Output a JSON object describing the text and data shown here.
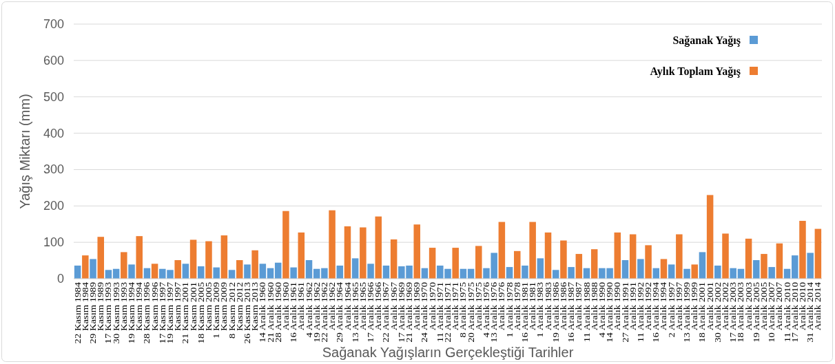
{
  "chart_data": {
    "type": "bar",
    "xlabel": "Sağanak Yağışların Gerçekleştiği Tarihler",
    "ylabel": "Yağış Miktarı (mm)",
    "categories": [
      "22 Kasım 1984",
      "Kasım 1984",
      "29 Kasım 1989",
      "Kasım 1989",
      "17 Kasım 1993",
      "30 Kasım 1993",
      "Kasım 1993",
      "19 Kasım 1994",
      "Kasım 1994",
      "28 Kasım 1996",
      "Kasım 1996",
      "17 Kasım 1997",
      "19 Kasım 1997",
      "Kasım 1997",
      "21 Kasım 2001",
      "Kasım 2001",
      "18 Kasım 2005",
      "Kasım 2005",
      "1 Kasım 2009",
      "Kasım 2009",
      "8 Kasım 2012",
      "Kasım 2012",
      "26 Kasım 2013",
      "Kasım 2013",
      "14 Aralık 1960",
      "21 Aralık 1960",
      "28 Aralık 1960",
      "Aralık 1960",
      "16 Aralık 1961",
      "Aralık 1961",
      "4 Aralık 1962",
      "19 Aralık 1962",
      "22 Aralık 1962",
      "Aralık 1962",
      "29 Aralık 1964",
      "Aralık 1964",
      "13 Aralık 1965",
      "Aralık 1965",
      "17 Aralık 1966",
      "Aralık 1966",
      "22 Aralık 1967",
      "Aralık 1967",
      "17 Aralık 1969",
      "21 Aralık 1969",
      "Aralık 1969",
      "24 Aralık 1970",
      "Aralık 1970",
      "11 Aralık 1971",
      "22 Aralık 1971",
      "Aralık 1971",
      "8 Aralık 1975",
      "20 Aralık 1975",
      "Aralık 1975",
      "4 Aralık 1976",
      "13 Aralık 1976",
      "Aralık 1976",
      "1 Aralık 1978",
      "Aralık 1978",
      "16 Aralık 1981",
      "Aralık 1981",
      "1 Aralık 1983",
      "Aralık 1983",
      "19 Aralık 1986",
      "Aralık 1986",
      "16 Aralık 1987",
      "Aralık 1987",
      "11 Aralık 1988",
      "Aralık 1988",
      "4 Aralık 1990",
      "14 Aralık 1990",
      "Aralık 1990",
      "27 Aralık 1991",
      "Aralık 1991",
      "11 Aralık 1992",
      "Aralık 1992",
      "16 Aralık 1994",
      "Aralık 1994",
      "2 Aralık 1997",
      "Aralık 1997",
      "13 Aralık 1999",
      "Aralık 1999",
      "18 Aralık 2001",
      "Aralık 2001",
      "30 Aralık 2002",
      "Aralık 2002",
      "17 Aralık 2003",
      "18 Aralık 2003",
      "Aralık 2003",
      "19 Aralık 2005",
      "Aralık 2005",
      "10 Aralık 2007",
      "Aralık 2007",
      "11 Aralık 2010",
      "17 Aralık 2010",
      "Aralık 2010",
      "31 Aralık 2014",
      "Aralık 2014"
    ],
    "series": [
      {
        "name": "Sağanak Yağış",
        "color": "#5b9bd5",
        "values": [
          36,
          null,
          54,
          null,
          24,
          27,
          null,
          39,
          null,
          29,
          null,
          27,
          24,
          null,
          41,
          null,
          34,
          null,
          31,
          null,
          24,
          null,
          39,
          null,
          41,
          29,
          44,
          null,
          31,
          null,
          51,
          27,
          29,
          null,
          36,
          null,
          56,
          null,
          41,
          null,
          36,
          null,
          34,
          36,
          null,
          29,
          null,
          36,
          27,
          null,
          27,
          27,
          null,
          29,
          71,
          null,
          32,
          null,
          36,
          null,
          56,
          null,
          24,
          null,
          32,
          null,
          29,
          null,
          29,
          29,
          null,
          51,
          null,
          54,
          null,
          29,
          null,
          39,
          null,
          27,
          null,
          73,
          null,
          36,
          null,
          29,
          27,
          null,
          51,
          null,
          32,
          null,
          27,
          64,
          null,
          71,
          null
        ]
      },
      {
        "name": "Aylık Toplam Yağış",
        "color": "#ed7d31",
        "values": [
          null,
          64,
          null,
          115,
          null,
          null,
          73,
          null,
          117,
          null,
          41,
          null,
          null,
          51,
          null,
          107,
          null,
          103,
          null,
          119,
          null,
          51,
          null,
          78,
          null,
          null,
          null,
          186,
          null,
          127,
          null,
          null,
          null,
          188,
          null,
          144,
          null,
          141,
          null,
          171,
          null,
          108,
          null,
          null,
          149,
          null,
          85,
          null,
          null,
          85,
          null,
          null,
          90,
          null,
          null,
          156,
          null,
          76,
          null,
          156,
          null,
          127,
          null,
          105,
          null,
          68,
          null,
          81,
          null,
          null,
          127,
          null,
          122,
          null,
          92,
          null,
          54,
          null,
          122,
          null,
          39,
          null,
          230,
          null,
          124,
          null,
          null,
          110,
          null,
          68,
          null,
          97,
          null,
          null,
          159,
          null,
          137
        ]
      }
    ],
    "ylim": [
      0,
      700
    ],
    "yticks": [
      0,
      100,
      200,
      300,
      400,
      500,
      600,
      700
    ],
    "grid": "y",
    "legend": "top right"
  }
}
